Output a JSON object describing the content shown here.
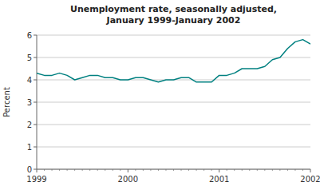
{
  "chart_data": {
    "type": "line",
    "title": "Unemployment rate, seasonally adjusted,\nJanuary 1999-January 2002",
    "y_label": "Percent",
    "categories": [
      "1999",
      null,
      null,
      null,
      null,
      null,
      null,
      null,
      null,
      null,
      null,
      null,
      "2000",
      null,
      null,
      null,
      null,
      null,
      null,
      null,
      null,
      null,
      null,
      null,
      "2001",
      null,
      null,
      null,
      null,
      null,
      null,
      null,
      null,
      null,
      null,
      null,
      "2002"
    ],
    "values": [
      4.3,
      4.2,
      4.2,
      4.3,
      4.2,
      4.0,
      4.1,
      4.2,
      4.2,
      4.1,
      4.1,
      4.0,
      4.0,
      4.1,
      4.1,
      4.0,
      3.9,
      4.0,
      4.0,
      4.1,
      4.1,
      3.9,
      3.9,
      3.9,
      4.2,
      4.2,
      4.3,
      4.5,
      4.5,
      4.5,
      4.6,
      4.9,
      5.0,
      5.4,
      5.7,
      5.8,
      5.6
    ],
    "color": "#008080",
    "ylim": [
      0,
      6
    ],
    "yticks": [
      0,
      1,
      2,
      3,
      4,
      5,
      6
    ],
    "grid": true
  }
}
